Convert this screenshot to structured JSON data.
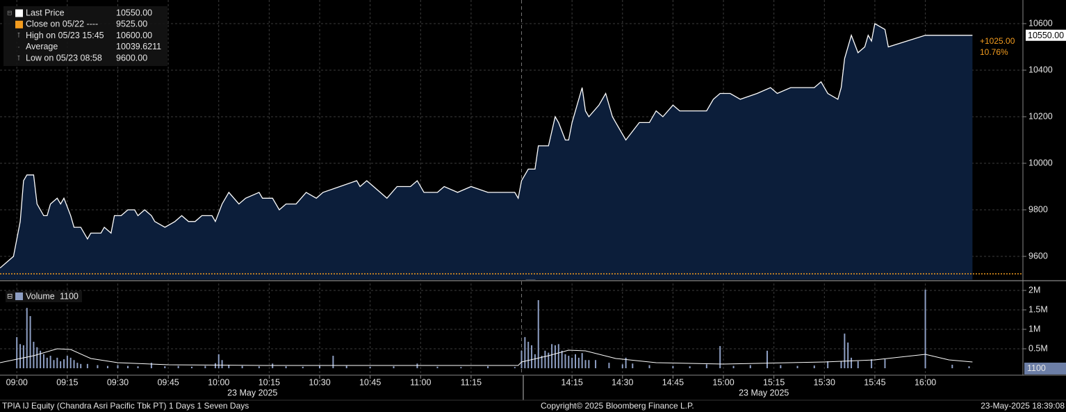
{
  "chart_data": [
    {
      "type": "area",
      "color": "#ffffff",
      "fill": "#0c1e3a",
      "xlim": [
        "08:55",
        "16:29"
      ],
      "xbreak": [
        "11:30",
        "14:00"
      ],
      "xticks": [
        "09:00",
        "09:15",
        "09:30",
        "09:45",
        "10:00",
        "10:15",
        "10:30",
        "10:45",
        "11:00",
        "11:15",
        "14:15",
        "14:30",
        "14:45",
        "15:00",
        "15:15",
        "15:30",
        "15:45",
        "16:00"
      ],
      "date_label": "23 May 2025",
      "ylim": [
        9500,
        10700
      ],
      "yticks": [
        9600,
        9800,
        10000,
        10200,
        10400,
        10600
      ],
      "grid": true,
      "x": [
        "08:55",
        "08:59",
        "09:01",
        "09:02",
        "09:03",
        "09:05",
        "09:06",
        "09:08",
        "09:09",
        "09:10",
        "09:12",
        "09:13",
        "09:14",
        "09:16",
        "09:17",
        "09:19",
        "09:21",
        "09:22",
        "09:25",
        "09:26",
        "09:28",
        "09:29",
        "09:31",
        "09:33",
        "09:35",
        "09:36",
        "09:38",
        "09:40",
        "09:41",
        "09:44",
        "09:47",
        "09:49",
        "09:51",
        "09:53",
        "09:55",
        "09:58",
        "09:59",
        "10:01",
        "10:03",
        "10:06",
        "10:08",
        "10:12",
        "10:13",
        "10:16",
        "10:18",
        "10:20",
        "10:23",
        "10:26",
        "10:29",
        "10:31",
        "10:36",
        "10:41",
        "10:42",
        "10:44",
        "10:48",
        "10:50",
        "10:53",
        "10:57",
        "10:59",
        "11:01",
        "11:05",
        "11:07",
        "11:11",
        "11:15",
        "11:20",
        "11:28",
        "11:29",
        "14:00",
        "14:02",
        "14:04",
        "14:05",
        "14:08",
        "14:10",
        "14:11",
        "14:13",
        "14:14",
        "14:15",
        "14:18",
        "14:19",
        "14:20",
        "14:23",
        "14:25",
        "14:27",
        "14:28",
        "14:31",
        "14:35",
        "14:38",
        "14:40",
        "14:42",
        "14:45",
        "14:47",
        "14:49",
        "14:55",
        "14:57",
        "14:59",
        "15:02",
        "15:05",
        "15:10",
        "15:14",
        "15:16",
        "15:20",
        "15:24",
        "15:27",
        "15:29",
        "15:31",
        "15:34",
        "15:35",
        "15:36",
        "15:38",
        "15:40",
        "15:42",
        "15:43",
        "15:44",
        "15:45",
        "15:48",
        "15:49",
        "16:00",
        "16:14"
      ],
      "series": [
        {
          "name": "Last Price",
          "values": [
            9550,
            9600,
            9750,
            9925,
            9950,
            9950,
            9825,
            9775,
            9775,
            9825,
            9850,
            9825,
            9850,
            9775,
            9725,
            9725,
            9675,
            9700,
            9700,
            9725,
            9700,
            9775,
            9775,
            9800,
            9800,
            9775,
            9800,
            9775,
            9750,
            9725,
            9750,
            9775,
            9750,
            9750,
            9775,
            9775,
            9750,
            9825,
            9875,
            9825,
            9850,
            9875,
            9850,
            9850,
            9800,
            9825,
            9825,
            9875,
            9850,
            9875,
            9900,
            9925,
            9900,
            9925,
            9875,
            9850,
            9900,
            9900,
            9925,
            9875,
            9875,
            9900,
            9875,
            9900,
            9875,
            9875,
            9850,
            9925,
            9975,
            9975,
            10075,
            10075,
            10200,
            10175,
            10100,
            10100,
            10175,
            10325,
            10225,
            10200,
            10250,
            10300,
            10200,
            10175,
            10100,
            10175,
            10175,
            10225,
            10200,
            10250,
            10225,
            10225,
            10225,
            10275,
            10300,
            10300,
            10275,
            10300,
            10325,
            10300,
            10325,
            10325,
            10325,
            10350,
            10300,
            10275,
            10325,
            10450,
            10550,
            10475,
            10500,
            10550,
            10525,
            10600,
            10575,
            10500,
            10550,
            10550
          ]
        }
      ],
      "legend": [
        {
          "label": "Last Price",
          "value": 10550,
          "value_label": "10550.00",
          "color": "#ffffff"
        },
        {
          "label": "Close on 05/22 ----",
          "value": 9525,
          "value_label": "9525.00",
          "color": "#f39c1f"
        },
        {
          "label": "High on 05/23 15:45",
          "value": 10600,
          "value_label": "10600.00",
          "color": "#aaaaaa"
        },
        {
          "label": "Average",
          "value": 10039.6211,
          "value_label": "10039.6211",
          "color": "#aaaaaa"
        },
        {
          "label": "Low on 05/23 08:58",
          "value": 9600,
          "value_label": "9600.00",
          "color": "#aaaaaa"
        }
      ],
      "change": {
        "value": 1025,
        "label": "+1025.00"
      },
      "change_pct": {
        "value": 10.76,
        "label": "10.76%"
      }
    },
    {
      "type": "bar",
      "name": "Volume",
      "color": "#8e9fc4",
      "ylim": [
        0,
        2200000
      ],
      "yticks": [
        {
          "value": 500000,
          "label": "0.5M"
        },
        {
          "value": 1000000,
          "label": "1M"
        },
        {
          "value": 1500000,
          "label": "1.5M"
        },
        {
          "value": 2000000,
          "label": "2M"
        }
      ],
      "x": [
        "09:00",
        "09:01",
        "09:02",
        "09:03",
        "09:04",
        "09:05",
        "09:06",
        "09:07",
        "09:08",
        "09:09",
        "09:10",
        "09:11",
        "09:12",
        "09:13",
        "09:14",
        "09:15",
        "09:16",
        "09:17",
        "09:18",
        "09:19",
        "09:21",
        "09:24",
        "09:27",
        "09:30",
        "09:33",
        "09:36",
        "09:40",
        "09:44",
        "09:48",
        "09:52",
        "09:56",
        "09:59",
        "10:00",
        "10:01",
        "10:03",
        "10:07",
        "10:12",
        "10:16",
        "10:20",
        "10:25",
        "10:30",
        "10:34",
        "10:38",
        "10:45",
        "10:52",
        "10:59",
        "11:05",
        "11:12",
        "11:20",
        "11:28",
        "14:00",
        "14:01",
        "14:02",
        "14:03",
        "14:04",
        "14:05",
        "14:06",
        "14:07",
        "14:08",
        "14:09",
        "14:10",
        "14:11",
        "14:12",
        "14:13",
        "14:14",
        "14:15",
        "14:16",
        "14:17",
        "14:18",
        "14:19",
        "14:20",
        "14:22",
        "14:26",
        "14:30",
        "14:31",
        "14:33",
        "14:38",
        "14:45",
        "14:50",
        "14:55",
        "14:59",
        "15:03",
        "15:08",
        "15:13",
        "15:17",
        "15:22",
        "15:27",
        "15:31",
        "15:35",
        "15:36",
        "15:37",
        "15:38",
        "15:40",
        "15:44",
        "15:48",
        "16:00",
        "16:08",
        "16:13",
        "16:14"
      ],
      "values": [
        800000,
        620000,
        590000,
        1550000,
        1340000,
        680000,
        540000,
        450000,
        360000,
        270000,
        320000,
        210000,
        270000,
        180000,
        230000,
        320000,
        270000,
        210000,
        140000,
        110000,
        110000,
        80000,
        60000,
        80000,
        60000,
        50000,
        140000,
        50000,
        60000,
        40000,
        60000,
        130000,
        360000,
        210000,
        90000,
        60000,
        50000,
        120000,
        50000,
        40000,
        60000,
        320000,
        60000,
        40000,
        50000,
        120000,
        40000,
        30000,
        50000,
        30000,
        450000,
        800000,
        680000,
        590000,
        360000,
        1750000,
        320000,
        450000,
        400000,
        620000,
        590000,
        620000,
        450000,
        360000,
        320000,
        270000,
        360000,
        270000,
        390000,
        210000,
        210000,
        210000,
        140000,
        100000,
        270000,
        120000,
        80000,
        60000,
        50000,
        100000,
        570000,
        60000,
        80000,
        450000,
        80000,
        60000,
        70000,
        180000,
        180000,
        890000,
        660000,
        270000,
        180000,
        230000,
        230000,
        2020000,
        90000,
        50000,
        1100
      ],
      "average": {
        "color": "#ffffff",
        "x": [
          "08:55",
          "09:05",
          "09:12",
          "09:16",
          "09:22",
          "09:30",
          "09:45",
          "10:15",
          "11:29",
          "14:00",
          "14:08",
          "14:14",
          "14:19",
          "14:28",
          "14:40",
          "15:00",
          "15:30",
          "15:45",
          "16:00",
          "16:07",
          "16:14"
        ],
        "values": [
          143000,
          321000,
          500000,
          482000,
          250000,
          143000,
          89000,
          71000,
          71000,
          160000,
          321000,
          464000,
          446000,
          250000,
          143000,
          107000,
          160000,
          214000,
          357000,
          214000,
          160000
        ]
      }
    }
  ],
  "footer": {
    "left": "TPIA IJ Equity (Chandra Asri Pacific Tbk PT) 1 Days 1 Seven Days",
    "center": "Copyright© 2025 Bloomberg Finance L.P.",
    "right": "23-May-2025 18:39:08"
  }
}
